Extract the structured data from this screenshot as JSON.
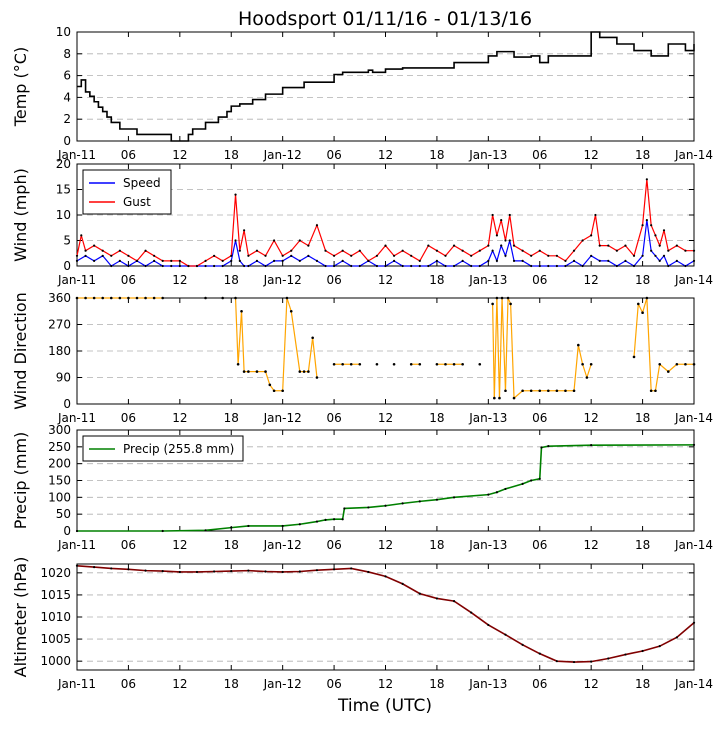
{
  "title": "Hoodsport 01/11/16 - 01/13/16",
  "xlabel": "Time (UTC)",
  "x_ticks": [
    "Jan-11",
    "06",
    "12",
    "18",
    "Jan-12",
    "06",
    "12",
    "18",
    "Jan-13",
    "06",
    "12",
    "18",
    "Jan-14"
  ],
  "x_tick_hours": [
    0,
    6,
    12,
    18,
    24,
    30,
    36,
    42,
    48,
    54,
    60,
    66,
    72
  ],
  "chart_data": [
    {
      "type": "line",
      "ylabel": "Temp (°C)",
      "ylim": [
        0,
        10
      ],
      "yticks": [
        "0",
        "2",
        "4",
        "6",
        "8",
        "10"
      ],
      "ytick_values": [
        0,
        2,
        4,
        6,
        8,
        10
      ],
      "grid": "horizontal dashed",
      "series": [
        {
          "color": "#000000",
          "x": [
            0,
            0.5,
            1.0,
            1.5,
            2,
            2.5,
            3,
            3.5,
            4,
            5,
            7,
            11,
            11.5,
            13,
            13.5,
            15,
            16.5,
            17.5,
            18,
            19,
            20.5,
            22,
            24,
            26.5,
            30,
            31,
            34,
            34.5,
            36,
            38,
            40,
            44,
            47,
            48,
            49,
            51,
            53,
            54,
            55,
            56,
            60,
            61,
            63,
            65,
            66,
            67,
            69,
            71,
            72
          ],
          "y": [
            5.0,
            5.6,
            4.5,
            4.1,
            3.6,
            3.1,
            2.7,
            2.2,
            1.7,
            1.1,
            0.6,
            0.0,
            0.0,
            0.6,
            1.1,
            1.7,
            2.2,
            2.7,
            3.2,
            3.4,
            3.8,
            4.3,
            4.9,
            5.4,
            6.1,
            6.3,
            6.5,
            6.3,
            6.6,
            6.7,
            6.7,
            7.2,
            7.2,
            7.8,
            8.2,
            7.7,
            7.8,
            7.2,
            7.8,
            7.8,
            10.0,
            9.5,
            8.9,
            8.3,
            8.3,
            7.8,
            8.9,
            8.3,
            8.9
          ]
        }
      ]
    },
    {
      "type": "line",
      "ylabel": "Wind (mph)",
      "ylim": [
        0,
        20
      ],
      "yticks": [
        "0",
        "5",
        "10",
        "15",
        "20"
      ],
      "ytick_values": [
        0,
        5,
        10,
        15,
        20
      ],
      "grid": "horizontal dashed",
      "legend": "top-left",
      "series": [
        {
          "name": "Speed",
          "color": "#0000ff",
          "x": [
            0,
            1,
            2,
            3,
            4,
            5,
            6,
            7,
            8,
            9,
            10,
            11,
            12,
            13,
            14,
            15,
            16,
            17,
            18,
            18.5,
            19,
            19.5,
            20,
            21,
            22,
            23,
            24,
            25,
            26,
            27,
            28,
            29,
            30,
            31,
            32,
            33,
            34,
            35,
            36,
            37,
            38,
            39,
            40,
            41,
            42,
            43,
            44,
            45,
            46,
            47,
            48,
            48.5,
            49,
            49.5,
            50,
            50.5,
            51,
            52,
            53,
            54,
            55,
            56,
            57,
            58,
            59,
            60,
            61,
            62,
            63,
            64,
            65,
            66,
            66.5,
            67,
            67.5,
            68,
            68.5,
            69,
            70,
            71,
            72
          ],
          "y": [
            1,
            2,
            1,
            2,
            0,
            1,
            0,
            1,
            0,
            1,
            0,
            0,
            0,
            0,
            0,
            0,
            0,
            0,
            1,
            5,
            1,
            0,
            0,
            1,
            0,
            1,
            1,
            2,
            1,
            2,
            1,
            0,
            0,
            1,
            0,
            0,
            1,
            0,
            0,
            1,
            0,
            0,
            0,
            0,
            1,
            0,
            0,
            1,
            0,
            0,
            1,
            3,
            1,
            4,
            2,
            5,
            1,
            1,
            0,
            0,
            0,
            0,
            0,
            1,
            0,
            2,
            1,
            1,
            0,
            1,
            0,
            2,
            9,
            3,
            2,
            1,
            2,
            0,
            1,
            0,
            1
          ]
        },
        {
          "name": "Gust",
          "color": "#ff0000",
          "x": [
            0,
            0.5,
            1,
            2,
            3,
            4,
            5,
            6,
            7,
            8,
            9,
            10,
            11,
            12,
            13,
            14,
            15,
            16,
            17,
            18,
            18.5,
            19,
            19.5,
            20,
            21,
            22,
            23,
            24,
            25,
            26,
            27,
            28,
            29,
            30,
            31,
            32,
            33,
            34,
            35,
            36,
            37,
            38,
            39,
            40,
            41,
            42,
            43,
            44,
            45,
            46,
            47,
            48,
            48.5,
            49,
            49.5,
            50,
            50.5,
            51,
            52,
            53,
            54,
            55,
            56,
            57,
            58,
            59,
            60,
            60.5,
            61,
            62,
            63,
            64,
            65,
            66,
            66.5,
            67,
            67.5,
            68,
            68.5,
            69,
            70,
            71,
            72
          ],
          "y": [
            2,
            6,
            3,
            4,
            3,
            2,
            3,
            2,
            1,
            3,
            2,
            1,
            1,
            1,
            0,
            0,
            1,
            2,
            1,
            2,
            14,
            3,
            7,
            2,
            3,
            2,
            5,
            2,
            3,
            5,
            4,
            8,
            3,
            2,
            3,
            2,
            3,
            1,
            2,
            4,
            2,
            3,
            2,
            1,
            4,
            3,
            2,
            4,
            3,
            2,
            3,
            4,
            10,
            6,
            9,
            5,
            10,
            4,
            3,
            2,
            3,
            2,
            2,
            1,
            3,
            5,
            6,
            10,
            4,
            4,
            3,
            4,
            2,
            8,
            17,
            8,
            6,
            4,
            7,
            3,
            4,
            3,
            3
          ]
        }
      ]
    },
    {
      "type": "scatter",
      "ylabel": "Wind Direction",
      "ylim": [
        0,
        360
      ],
      "yticks": [
        "0",
        "90",
        "180",
        "270",
        "360"
      ],
      "ytick_values": [
        0,
        90,
        180,
        270,
        360
      ],
      "grid": "horizontal dashed",
      "series": [
        {
          "color": "#ffa500",
          "x": [
            0,
            1,
            2,
            3,
            4,
            5,
            6,
            7,
            8,
            9,
            10,
            15,
            17,
            18.5,
            18.8,
            19.2,
            19.5,
            20,
            21,
            22,
            22.5,
            23,
            24,
            24.5,
            25,
            26,
            26.5,
            27,
            27.5,
            28,
            30,
            31,
            32,
            33,
            35,
            37,
            39,
            40,
            42,
            43,
            44,
            45,
            47,
            48.5,
            48.7,
            49,
            49.3,
            49.6,
            50,
            50.3,
            50.6,
            51,
            52,
            53,
            54,
            55,
            56,
            57,
            58,
            58.5,
            59,
            59.5,
            60,
            65,
            65.5,
            66,
            66.5,
            67,
            67.5,
            68,
            69,
            70,
            71,
            72
          ],
          "y": [
            360,
            360,
            360,
            360,
            360,
            360,
            360,
            360,
            360,
            360,
            360,
            360,
            360,
            360,
            135,
            315,
            110,
            110,
            110,
            110,
            65,
            45,
            45,
            360,
            315,
            110,
            110,
            110,
            225,
            90,
            135,
            135,
            135,
            135,
            135,
            135,
            135,
            135,
            135,
            135,
            135,
            135,
            135,
            340,
            20,
            360,
            20,
            360,
            45,
            360,
            340,
            20,
            45,
            45,
            45,
            45,
            45,
            45,
            45,
            200,
            135,
            90,
            135,
            160,
            340,
            310,
            360,
            45,
            45,
            135,
            110,
            135,
            135,
            135
          ]
        }
      ]
    },
    {
      "type": "line",
      "ylabel": "Precip (mm)",
      "ylim": [
        0,
        300
      ],
      "yticks": [
        "0",
        "50",
        "100",
        "150",
        "200",
        "250",
        "300"
      ],
      "ytick_values": [
        0,
        50,
        100,
        150,
        200,
        250,
        300
      ],
      "grid": "horizontal dashed",
      "legend": "top-left",
      "series": [
        {
          "name": "Precip (255.8 mm)",
          "color": "#008000",
          "x": [
            0,
            10,
            15,
            18,
            20,
            24,
            26,
            28,
            29,
            30,
            31,
            31.2,
            34,
            36,
            38,
            40,
            42,
            44,
            48,
            49,
            50,
            52,
            53,
            54,
            54.2,
            55,
            60,
            72
          ],
          "y": [
            0,
            0,
            2,
            10,
            15,
            15,
            20,
            28,
            33,
            35,
            35,
            67,
            70,
            75,
            82,
            88,
            93,
            100,
            108,
            115,
            125,
            140,
            150,
            155,
            248,
            252,
            255,
            255.8
          ]
        }
      ]
    },
    {
      "type": "line",
      "ylabel": "Altimeter (hPa)",
      "ylim": [
        998,
        1022
      ],
      "yticks": [
        "1000",
        "1005",
        "1010",
        "1015",
        "1020"
      ],
      "ytick_values": [
        1000,
        1005,
        1010,
        1015,
        1020
      ],
      "grid": "horizontal dashed",
      "series": [
        {
          "color": "#800000",
          "x": [
            0,
            2,
            4,
            6,
            8,
            10,
            12,
            14,
            16,
            18,
            20,
            22,
            24,
            26,
            28,
            30,
            32,
            34,
            36,
            38,
            40,
            42,
            44,
            46,
            48,
            50,
            52,
            54,
            56,
            58,
            60,
            62,
            64,
            66,
            68,
            70,
            72
          ],
          "y": [
            1021.6,
            1021.3,
            1021.0,
            1020.8,
            1020.5,
            1020.4,
            1020.2,
            1020.2,
            1020.3,
            1020.4,
            1020.5,
            1020.3,
            1020.2,
            1020.3,
            1020.6,
            1020.8,
            1021.0,
            1020.2,
            1019.2,
            1017.5,
            1015.3,
            1014.2,
            1013.6,
            1011.0,
            1008.2,
            1006.0,
            1003.7,
            1001.7,
            1000.0,
            999.8,
            999.9,
            1000.6,
            1001.5,
            1002.3,
            1003.4,
            1005.4,
            1008.7
          ]
        }
      ]
    }
  ]
}
